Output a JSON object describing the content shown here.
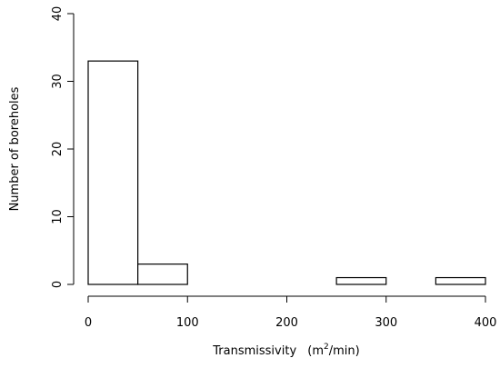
{
  "chart_data": {
    "type": "bar",
    "subtype": "histogram",
    "bins": [
      {
        "from": 0,
        "to": 50,
        "count": 33
      },
      {
        "from": 50,
        "to": 100,
        "count": 3
      },
      {
        "from": 100,
        "to": 150,
        "count": 0
      },
      {
        "from": 150,
        "to": 200,
        "count": 0
      },
      {
        "from": 200,
        "to": 250,
        "count": 0
      },
      {
        "from": 250,
        "to": 300,
        "count": 1
      },
      {
        "from": 300,
        "to": 350,
        "count": 0
      },
      {
        "from": 350,
        "to": 400,
        "count": 1
      }
    ],
    "xlabel_prefix": "Transmissivity",
    "xlabel_unit_base": "m",
    "xlabel_unit_exp": "2",
    "xlabel_unit_suffix": "/min",
    "ylabel": "Number of boreholes",
    "xlim": [
      0,
      400
    ],
    "ylim": [
      0,
      40
    ],
    "xticks": [
      "0",
      "100",
      "200",
      "300",
      "400"
    ],
    "yticks": [
      "0",
      "10",
      "20",
      "30",
      "40"
    ],
    "grid": false,
    "legend": "none",
    "colors": {
      "bar_fill": "#ffffff",
      "bar_stroke": "#000000",
      "axis": "#000000"
    }
  }
}
